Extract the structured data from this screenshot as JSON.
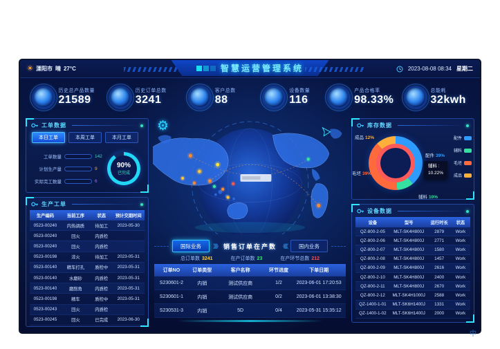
{
  "icons": {
    "sun": "☀",
    "gear": "⚙"
  },
  "header": {
    "weather": {
      "city": "溧阳市",
      "condition": "晴",
      "temp": "27°C"
    },
    "title": "智慧运营管理系统",
    "date": "2023-08-08 08:34",
    "weekday": "星期二"
  },
  "kpis": [
    {
      "label": "历史总产品数量",
      "value": "21589"
    },
    {
      "label": "历史订单总数",
      "value": "3241"
    },
    {
      "label": "客户总数",
      "value": "88"
    },
    {
      "label": "设备数量",
      "value": "116"
    },
    {
      "label": "产品合格率",
      "value": "98.33%"
    },
    {
      "label": "总能耗",
      "value": "32kwh"
    }
  ],
  "work_order_panel": {
    "title": "工单数据",
    "tabs": [
      {
        "label": "本日工单"
      },
      {
        "label": "本周工单"
      },
      {
        "label": "本月工单"
      }
    ],
    "bars": [
      {
        "label": "工单数量",
        "value": "142",
        "pct": 95,
        "color": "#35e0c0"
      },
      {
        "label": "计划生产量",
        "value": "9",
        "pct": 8,
        "color": "#ffaa2b"
      },
      {
        "label": "实际完工数量",
        "value": "6",
        "pct": 6,
        "color": "#b06ef5"
      }
    ],
    "gauge": {
      "value": "90%",
      "pct": 90,
      "label": "已完成"
    }
  },
  "production_panel": {
    "title": "生产工单",
    "headers": [
      "生产编码",
      "当前工序",
      "状态",
      "预计交期时间"
    ],
    "rows": [
      [
        "0523-00240",
        "内热调质",
        "待加工",
        "2023-05-30"
      ],
      [
        "0523-00240",
        "回火",
        "内质检",
        ""
      ],
      [
        "0523-00240",
        "回火",
        "内质检",
        ""
      ],
      [
        "0523-00198",
        "淬火",
        "待加工",
        "2023-05-31"
      ],
      [
        "0523-00140",
        "精车打孔",
        "质检中",
        "2023-05-31"
      ],
      [
        "0523-00140",
        "水磨砂",
        "内质检",
        "2023-05-31"
      ],
      [
        "0523-00140",
        "磨削角",
        "内质检",
        "2023-05-31"
      ],
      [
        "0523-00198",
        "精车",
        "质检中",
        "2023-05-31"
      ],
      [
        "0523-00243",
        "回火",
        "内质检",
        ""
      ],
      [
        "0523-00245",
        "回火",
        "已完成",
        "2023-06-30"
      ]
    ]
  },
  "orders_panel": {
    "buttons": [
      {
        "label": "国际业务"
      },
      {
        "label": "国内业务"
      }
    ],
    "left_chevrons": "》》》",
    "right_chevrons": "《《《",
    "title": "销售订单在产数",
    "stats": [
      {
        "label": "总订单数",
        "value": "3241",
        "color": "#ffd23f"
      },
      {
        "label": "在产订单数",
        "value": "23",
        "color": "#3ae67a"
      },
      {
        "label": "在产环节总数",
        "value": "212",
        "color": "#ff4d4d"
      }
    ],
    "headers": [
      "订单NO",
      "订单类型",
      "客户名称",
      "环节进度",
      "下单日期"
    ],
    "rows": [
      [
        "S230601-2",
        "内销",
        "测试供应商",
        "1/2",
        "2023-06-01 17:20:53"
      ],
      [
        "S230601-1",
        "内销",
        "测试供应商",
        "0/2",
        "2023-06-01 13:38:30"
      ],
      [
        "S230531-3",
        "内销",
        "5D",
        "0/4",
        "2023-05-31 15:35:12"
      ]
    ]
  },
  "inventory_panel": {
    "title": "库存数据",
    "chart_data": {
      "type": "pie",
      "title": "库存数据",
      "slices": [
        {
          "label": "配件",
          "value": 39,
          "color": "#2e9bff"
        },
        {
          "label": "辅料",
          "value": 10,
          "color": "#35e0a0"
        },
        {
          "label": "毛坯",
          "value": 39,
          "color": "#ff6a3d"
        },
        {
          "label": "成品",
          "value": 12,
          "color": "#ffb03a"
        }
      ]
    },
    "callouts": [
      {
        "label": "成品",
        "pct": "12%",
        "color": "#ffb03a"
      },
      {
        "label": "配件",
        "pct": "39%",
        "color": "#2e9bff"
      },
      {
        "label": "辅料",
        "pct": "10%",
        "color": "#35e0a0"
      },
      {
        "label": "毛坯",
        "pct": "39%",
        "color": "#ff6a3d"
      }
    ],
    "tooltip": {
      "label": "辅料 :",
      "value": "10.22%"
    },
    "legend": [
      {
        "label": "配件",
        "color": "#2e9bff"
      },
      {
        "label": "辅料",
        "color": "#35e0a0"
      },
      {
        "label": "毛坯",
        "color": "#ff6a3d"
      },
      {
        "label": "成品",
        "color": "#ffb03a"
      }
    ]
  },
  "device_panel": {
    "title": "设备数据",
    "headers": [
      "设备",
      "型号",
      "运行时长",
      "状态"
    ],
    "rows": [
      [
        "QZ-800-2-05",
        "MLT-SK4H800J",
        "2879",
        "Work"
      ],
      [
        "QZ-800-2-06",
        "MLT-SK4H800J",
        "2771",
        "Work"
      ],
      [
        "QZ-800-2-07",
        "MLT-SK4H800J",
        "1580",
        "Work"
      ],
      [
        "QZ-800-2-08",
        "MLT-SK4H800J",
        "1457",
        "Work"
      ],
      [
        "QZ-800-2-09",
        "MLT-SK4H800J",
        "2616",
        "Work"
      ],
      [
        "QZ-800-2-10",
        "MLT-SK4H800J",
        "2400",
        "Work"
      ],
      [
        "QZ-800-2-11",
        "MLT-SK4H800J",
        "2670",
        "Work"
      ],
      [
        "QZ-800-2-12",
        "MLT-SK4H1000J",
        "2588",
        "Work"
      ],
      [
        "QZ-1400-1-01",
        "MLT-SK6H1400J",
        "1331",
        "Work"
      ],
      [
        "QZ-1400-1-02",
        "MLT-SK6H1400J",
        "2000",
        "Work"
      ]
    ]
  },
  "watermark": "中"
}
